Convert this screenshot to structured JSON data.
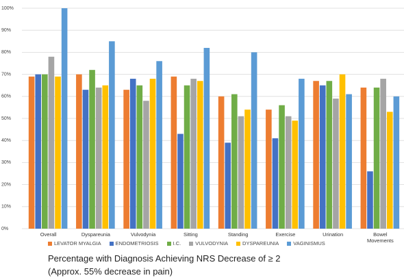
{
  "chart_data": {
    "type": "bar",
    "title": "Percentage with Diagnosis Achieving NRS Decrease of  ≥ 2",
    "subtitle": "(Approx. 55% decrease in pain)",
    "categories": [
      "Overall",
      "Dyspareunia",
      "Vulvodynia",
      "Sitting",
      "Standing",
      "Exercise",
      "Urination",
      "Bowel Movements"
    ],
    "series": [
      {
        "name": "LEVATOR MYALGIA",
        "color": "#ed7d31",
        "values": [
          69,
          70,
          63,
          69,
          60,
          54,
          67,
          64
        ]
      },
      {
        "name": "ENDOMETRIOSIS",
        "color": "#4472c4",
        "values": [
          70,
          63,
          68,
          43,
          39,
          41,
          65,
          26
        ]
      },
      {
        "name": "I.C.",
        "color": "#70ad47",
        "values": [
          70,
          72,
          65,
          65,
          61,
          56,
          67,
          64
        ]
      },
      {
        "name": "VULVODYNIA",
        "color": "#a5a5a5",
        "values": [
          78,
          64,
          58,
          68,
          51,
          51,
          59,
          68
        ]
      },
      {
        "name": "DYSPAREUNIA",
        "color": "#ffc000",
        "values": [
          69,
          65,
          68,
          67,
          54,
          49,
          70,
          53
        ]
      },
      {
        "name": "VAGINISMUS",
        "color": "#5b9bd5",
        "values": [
          100,
          85,
          76,
          82,
          80,
          68,
          61,
          60
        ]
      }
    ],
    "ylim": [
      0,
      100
    ],
    "yticks": [
      {
        "value": 0,
        "label": "0%"
      },
      {
        "value": 10,
        "label": "10%"
      },
      {
        "value": 20,
        "label": "20%"
      },
      {
        "value": 30,
        "label": "30%"
      },
      {
        "value": 40,
        "label": "40%"
      },
      {
        "value": 50,
        "label": "50%"
      },
      {
        "value": 60,
        "label": "60%"
      },
      {
        "value": 70,
        "label": "70%"
      },
      {
        "value": 80,
        "label": "80%"
      },
      {
        "value": 90,
        "label": "90%"
      },
      {
        "value": 100,
        "label": "100%"
      }
    ],
    "grid": true
  }
}
